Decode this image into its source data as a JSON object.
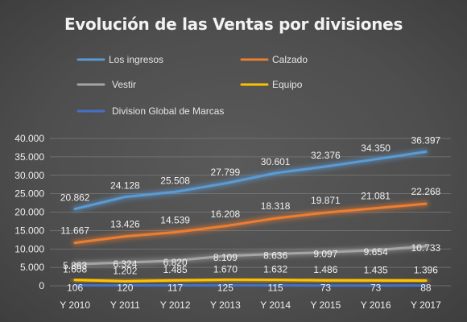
{
  "chart_data": {
    "type": "line",
    "title": "Evolución de las Ventas por divisiones",
    "categories": [
      "Y 2010",
      "Y 2011",
      "Y 2012",
      "Y 2013",
      "Y 2014",
      "Y 2015",
      "Y 2016",
      "Y 2017"
    ],
    "ylim": [
      0,
      40000
    ],
    "yticks": [
      0,
      5000,
      10000,
      15000,
      20000,
      25000,
      30000,
      35000,
      40000
    ],
    "ytick_labels": [
      "0",
      "5.000",
      "10.000",
      "15.000",
      "20.000",
      "25.000",
      "30.000",
      "35.000",
      "40.000"
    ],
    "grid": true,
    "legend_position": "top",
    "series": [
      {
        "name": "Los ingresos",
        "color": "#5b9bd5",
        "values": [
          20862,
          24128,
          25508,
          27799,
          30601,
          32376,
          34350,
          36397
        ],
        "labels": [
          "20.862",
          "24.128",
          "25.508",
          "27.799",
          "30.601",
          "32.376",
          "34.350",
          "36.397"
        ]
      },
      {
        "name": "Calzado",
        "color": "#ed7d31",
        "values": [
          11667,
          13426,
          14539,
          16208,
          18318,
          19871,
          21081,
          22268
        ],
        "labels": [
          "11.667",
          "13.426",
          "14.539",
          "16.208",
          "18.318",
          "19.871",
          "21.081",
          "22.268"
        ]
      },
      {
        "name": "Vestir",
        "color": "#a5a5a5",
        "values": [
          5863,
          6324,
          6820,
          8109,
          8636,
          9097,
          9654,
          10733
        ],
        "labels": [
          "5.863",
          "6.324",
          "6.820",
          "8.109",
          "8.636",
          "9.097",
          "9.654",
          "10.733"
        ]
      },
      {
        "name": "Equipo",
        "color": "#ffc000",
        "values": [
          1608,
          1202,
          1485,
          1670,
          1632,
          1486,
          1435,
          1396
        ],
        "labels": [
          "1.608",
          "1.202",
          "1.485",
          "1.670",
          "1.632",
          "1.486",
          "1.435",
          "1.396"
        ]
      },
      {
        "name": "Division Global de Marcas",
        "color": "#4472c4",
        "values": [
          106,
          120,
          117,
          125,
          115,
          73,
          73,
          88
        ],
        "labels": [
          "106",
          "120",
          "117",
          "125",
          "115",
          "73",
          "73",
          "88"
        ]
      }
    ]
  }
}
